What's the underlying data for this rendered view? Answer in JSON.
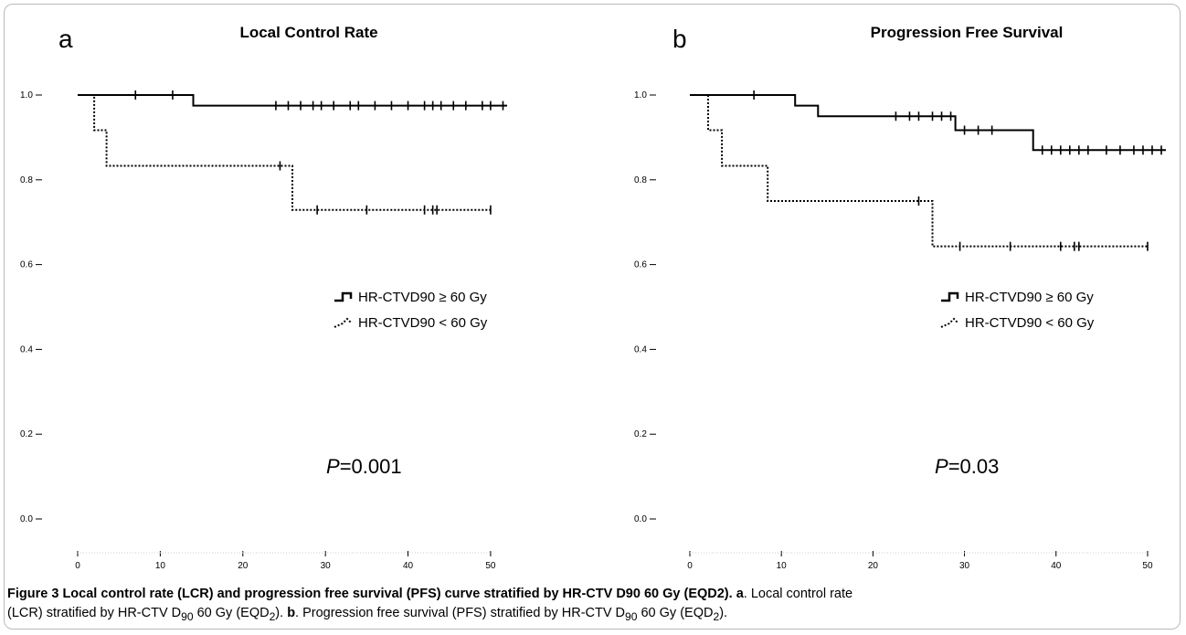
{
  "chart_data": [
    {
      "panel_letter": "a",
      "title": "Local Control Rate",
      "type": "line",
      "step": true,
      "xlim": [
        0,
        52
      ],
      "ylim": [
        0,
        1
      ],
      "x_ticks": [
        "0",
        "10",
        "20",
        "30",
        "40",
        "50"
      ],
      "y_ticks": [
        "0.0",
        "0.2",
        "0.4",
        "0.6",
        "0.8",
        "1.0"
      ],
      "series": [
        {
          "name": "HR-CTVD90 ≥ 60 Gy",
          "line_style": "solid",
          "x": [
            0,
            14,
            14,
            52
          ],
          "y": [
            1.0,
            1.0,
            0.975,
            0.975
          ],
          "censored_x": [
            7,
            11.5,
            24,
            25.5,
            27,
            28.5,
            29.5,
            31,
            33,
            34,
            36,
            38,
            40,
            42,
            43,
            44,
            45.5,
            47,
            49,
            50,
            51.5
          ]
        },
        {
          "name": "HR-CTVD90 < 60 Gy",
          "line_style": "dotted",
          "x": [
            0,
            2,
            2,
            3.5,
            3.5,
            26,
            26,
            50
          ],
          "y": [
            1.0,
            1.0,
            0.917,
            0.917,
            0.833,
            0.833,
            0.729,
            0.729
          ],
          "censored_x": [
            24.5,
            29,
            35,
            42,
            43,
            43.5,
            50
          ]
        }
      ],
      "legend": [
        "HR-CTVD90 ≥ 60 Gy",
        "HR-CTVD90 < 60 Gy"
      ],
      "legend_position": "center-right",
      "p_label": "P",
      "p_value": "=0.001"
    },
    {
      "panel_letter": "b",
      "title": "Progression Free Survival",
      "type": "line",
      "step": true,
      "xlim": [
        0,
        52
      ],
      "ylim": [
        0,
        1
      ],
      "x_ticks": [
        "0",
        "10",
        "20",
        "30",
        "40",
        "50"
      ],
      "y_ticks": [
        "0.0",
        "0.2",
        "0.4",
        "0.6",
        "0.8",
        "1.0"
      ],
      "series": [
        {
          "name": "HR-CTVD90 ≥ 60 Gy",
          "line_style": "solid",
          "x": [
            0,
            11.5,
            11.5,
            14,
            14,
            29,
            29,
            37.5,
            37.5,
            52
          ],
          "y": [
            1.0,
            1.0,
            0.975,
            0.975,
            0.95,
            0.95,
            0.917,
            0.917,
            0.87,
            0.87
          ],
          "censored_x": [
            7,
            22.5,
            24,
            25,
            26.5,
            27.5,
            28.5,
            30,
            31.5,
            33,
            38.5,
            39.5,
            40.5,
            41.5,
            42.5,
            43.5,
            45.5,
            47,
            48.5,
            49.5,
            50.5,
            51.5
          ]
        },
        {
          "name": "HR-CTVD90 < 60 Gy",
          "line_style": "dotted",
          "x": [
            0,
            2,
            2,
            3.5,
            3.5,
            8.5,
            8.5,
            26.5,
            26.5,
            50
          ],
          "y": [
            1.0,
            1.0,
            0.917,
            0.917,
            0.833,
            0.833,
            0.75,
            0.75,
            0.643,
            0.643
          ],
          "censored_x": [
            25,
            29.5,
            35,
            40.5,
            42,
            42.5,
            50
          ]
        }
      ],
      "legend": [
        "HR-CTVD90 ≥ 60 Gy",
        "HR-CTVD90 < 60 Gy"
      ],
      "legend_position": "center-right",
      "p_label": "P",
      "p_value": "=0.03"
    }
  ],
  "caption": {
    "figure_label": "Figure 3",
    "title": "Local control rate (LCR) and progression free survival (PFS) curve stratified by HR-CTV D90 60 Gy (EQD2).",
    "a_label": "a",
    "a_text_1": ". Local control rate",
    "a_text_2": "(LCR) stratified by HR-CTV D",
    "sub_90": "90",
    "a_text_3": " 60 Gy (EQD",
    "sub_2": "2",
    "a_text_4": "). ",
    "b_label": "b",
    "b_text_1": ". Progression free survival (PFS) stratified by HR-CTV D",
    "b_text_2": " 60 Gy (EQD",
    "b_text_3": ")."
  }
}
